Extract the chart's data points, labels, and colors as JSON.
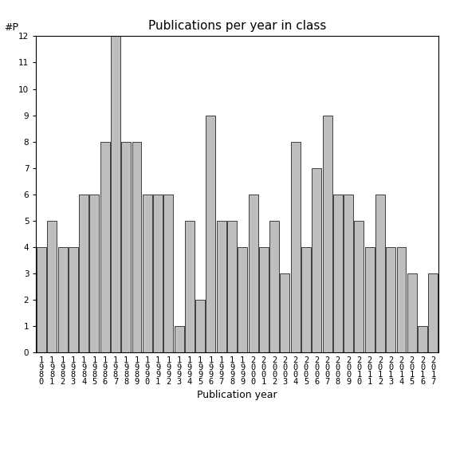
{
  "title": "Publications per year in class",
  "xlabel": "Publication year",
  "ylabel": "#P",
  "years": [
    "1980",
    "1981",
    "1982",
    "1983",
    "1984",
    "1985",
    "1986",
    "1987",
    "1988",
    "1989",
    "1990",
    "1991",
    "1992",
    "1993",
    "1994",
    "1995",
    "1996",
    "1997",
    "1998",
    "1999",
    "2000",
    "2001",
    "2002",
    "2003",
    "2004",
    "2005",
    "2006",
    "2007",
    "2008",
    "2009",
    "2010",
    "2011",
    "2012",
    "2013",
    "2014",
    "2015",
    "2016",
    "2017"
  ],
  "values": [
    4,
    5,
    4,
    4,
    6,
    6,
    8,
    12,
    8,
    8,
    6,
    6,
    6,
    1,
    5,
    2,
    9,
    5,
    5,
    4,
    6,
    4,
    5,
    3,
    8,
    4,
    7,
    9,
    6,
    6,
    5,
    4,
    6,
    4,
    4,
    3,
    1,
    3
  ],
  "bar_color": "#bebebe",
  "bar_edgecolor": "#000000",
  "ylim": [
    0,
    12
  ],
  "yticks": [
    0,
    1,
    2,
    3,
    4,
    5,
    6,
    7,
    8,
    9,
    10,
    11,
    12
  ],
  "background_color": "#ffffff",
  "title_fontsize": 11,
  "label_fontsize": 9,
  "tick_fontsize": 7.5,
  "ylabel_fontsize": 9
}
